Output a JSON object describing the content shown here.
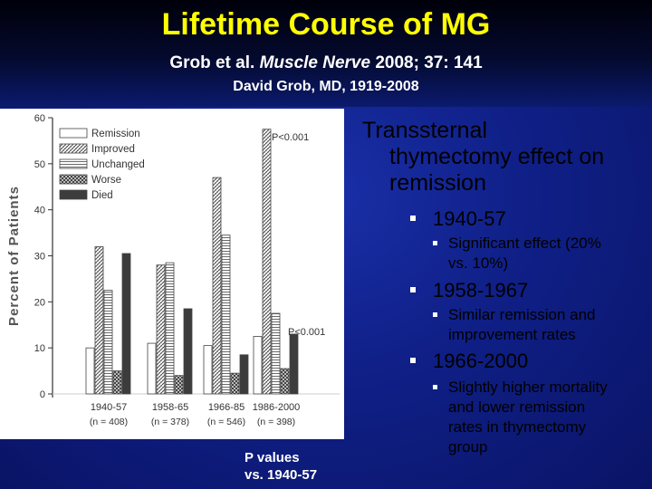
{
  "slide": {
    "title": "Lifetime Course of MG",
    "subtitle_prefix": "Grob et al. ",
    "subtitle_journal": "Muscle Nerve",
    "subtitle_suffix": " 2008; 37: 141",
    "byline": "David Grob, MD, 1919-2008",
    "footnote_line1": "P values",
    "footnote_line2": "vs. 1940-57"
  },
  "bullets": {
    "heading_line1": "Transsternal",
    "heading_line2": "thymectomy effect on",
    "heading_line3": "remission",
    "items": [
      {
        "label": "1940-57",
        "sub": [
          "Significant effect (20%",
          "vs. 10%)"
        ]
      },
      {
        "label": "1958-1967",
        "sub": [
          "Similar remission and",
          "improvement rates"
        ]
      },
      {
        "label": "1966-2000",
        "sub": [
          "Slightly higher mortality",
          "and lower remission",
          "rates in thymectomy",
          "group"
        ]
      }
    ]
  },
  "chart_data": {
    "type": "bar",
    "ylabel": "Percent of Patients",
    "ylim": [
      0,
      60
    ],
    "yticks": [
      "0",
      "10",
      "20",
      "30",
      "40",
      "50",
      "60"
    ],
    "categories": [
      "1940-57",
      "1958-65",
      "1966-85",
      "1986-2000"
    ],
    "category_n": [
      "(n = 408)",
      "(n = 378)",
      "(n = 546)",
      "(n = 398)"
    ],
    "annotations": [
      "P<0.001",
      "P<0.001"
    ],
    "grid": false,
    "legend_position": "top-left",
    "series": [
      {
        "name": "Remission",
        "pattern": "blank",
        "values": [
          10,
          11,
          10.5,
          12.5
        ]
      },
      {
        "name": "Improved",
        "pattern": "hatched",
        "values": [
          32,
          28,
          47,
          57.5
        ]
      },
      {
        "name": "Unchanged",
        "pattern": "striped",
        "values": [
          22.5,
          28.5,
          34.5,
          17.5
        ]
      },
      {
        "name": "Worse",
        "pattern": "checked",
        "values": [
          5,
          4,
          4.5,
          5.5
        ]
      },
      {
        "name": "Died",
        "pattern": "dark",
        "values": [
          30.5,
          18.5,
          8.5,
          13
        ]
      }
    ]
  }
}
